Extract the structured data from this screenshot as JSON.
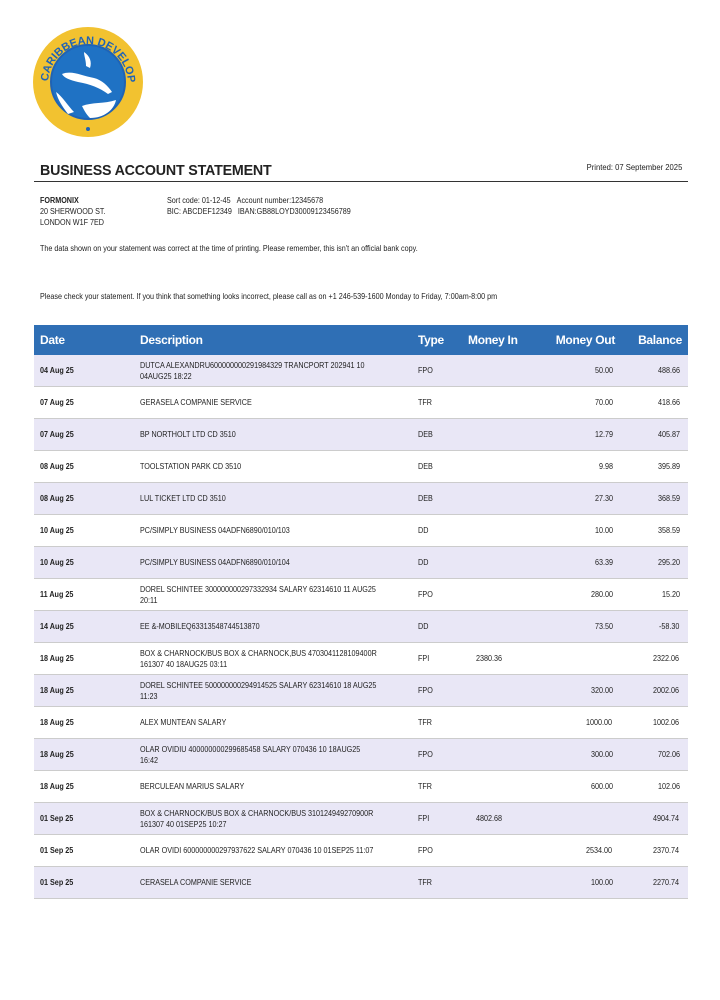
{
  "logo": {
    "text": "CARIBBEAN DEVELOPMENT BANK",
    "colors": {
      "ring": "#f2c230",
      "inner": "#1f72c4",
      "text": "#1f63b5"
    }
  },
  "header": {
    "title": "BUSINESS ACCOUNT STATEMENT",
    "printed": "Printed: 07 September 2025"
  },
  "account": {
    "name": "FORMONIX",
    "address_line1": "20 SHERWOOD ST.",
    "address_line2": "LONDON W1F 7ED",
    "sort_code": "Sort code: 01-12-45",
    "account_number": "Account number:12345678",
    "bic": "BIC: ABCDEF12349",
    "iban": "IBAN:GB88LOYD30009123456789"
  },
  "notes": {
    "disclaimer": "The data shown on your statement was correct at the time of printing. Please remember, this isn't an official bank copy.",
    "contact": "Please check your statement. If you think that something looks incorrect, please call as on +1 246-539-1600 Monday to Friday, 7:00am-8:00 pm"
  },
  "table": {
    "header_color": "#2f6fb5",
    "columns": [
      "Date",
      "Description",
      "Type",
      "Money In",
      "Money Out",
      "Balance"
    ],
    "rows": [
      [
        "04 Aug 25",
        "DUTCA ALEXANDRU600000000291984329 TRANCPORT 202941 10 04AUG25 18:22",
        "FPO",
        "",
        "50.00",
        "488.66"
      ],
      [
        "07 Aug 25",
        "GERASELA COMPANIE SERVICE",
        "TFR",
        "",
        "70.00",
        "418.66"
      ],
      [
        "07 Aug 25",
        "BP NORTHOLT LTD CD 3510",
        "DEB",
        "",
        "12.79",
        "405.87"
      ],
      [
        "08 Aug 25",
        "TOOLSTATION PARK CD 3510",
        "DEB",
        "",
        "9.98",
        "395.89"
      ],
      [
        "08 Aug 25",
        "LUL TICKET LTD CD 3510",
        "DEB",
        "",
        "27.30",
        "368.59"
      ],
      [
        "10 Aug 25",
        "PC/SIMPLY BUSINESS 04ADFN6890/010/103",
        "DD",
        "",
        "10.00",
        "358.59"
      ],
      [
        "10 Aug 25",
        "PC/SIMPLY BUSINESS 04ADFN6890/010/104",
        "DD",
        "",
        "63.39",
        "295.20"
      ],
      [
        "11 Aug 25",
        "DOREL SCHINTEE 300000000297332934 SALARY 62314610 11 AUG25 20:11",
        "FPO",
        "",
        "280.00",
        "15.20"
      ],
      [
        "14 Aug 25",
        "EE &-MOBILEQ63313548744513870",
        "DD",
        "",
        "73.50",
        "-58.30"
      ],
      [
        "18 Aug 25",
        "BOX & CHARNOCK/BUS BOX & CHARNOCK,BUS 4703041128109400R 161307 40 18AUG25 03:11",
        "FPI",
        "2380.36",
        "",
        "2322.06"
      ],
      [
        "18 Aug 25",
        "DOREL SCHINTEE 500000000294914525 SALARY 62314610 18 AUG25 11:23",
        "FPO",
        "",
        "320.00",
        "2002.06"
      ],
      [
        "18 Aug 25",
        "ALEX MUNTEAN SALARY",
        "TFR",
        "",
        "1000.00",
        "1002.06"
      ],
      [
        "18 Aug 25",
        "OLAR OVIDIU 400000000299685458 SALARY 070436 10 18AUG25 16:42",
        "FPO",
        "",
        "300.00",
        "702.06"
      ],
      [
        "18 Aug 25",
        "BERCULEAN MARIUS SALARY",
        "TFR",
        "",
        "600.00",
        "102.06"
      ],
      [
        "01 Sep 25",
        "BOX & CHARNOCK/BUS BOX & CHARNOCK/BUS 310124949270900R 161307 40 01SEP25 10:27",
        "FPI",
        "4802.68",
        "",
        "4904.74"
      ],
      [
        "01 Sep 25",
        "OLAR OVIDI 600000000297937622 SALARY 070436 10 01SEP25 11:07",
        "FPO",
        "",
        "2534.00",
        "2370.74"
      ],
      [
        "01 Sep 25",
        "CERASELA COMPANIE SERVICE",
        "TFR",
        "",
        "100.00",
        "2270.74"
      ]
    ]
  }
}
